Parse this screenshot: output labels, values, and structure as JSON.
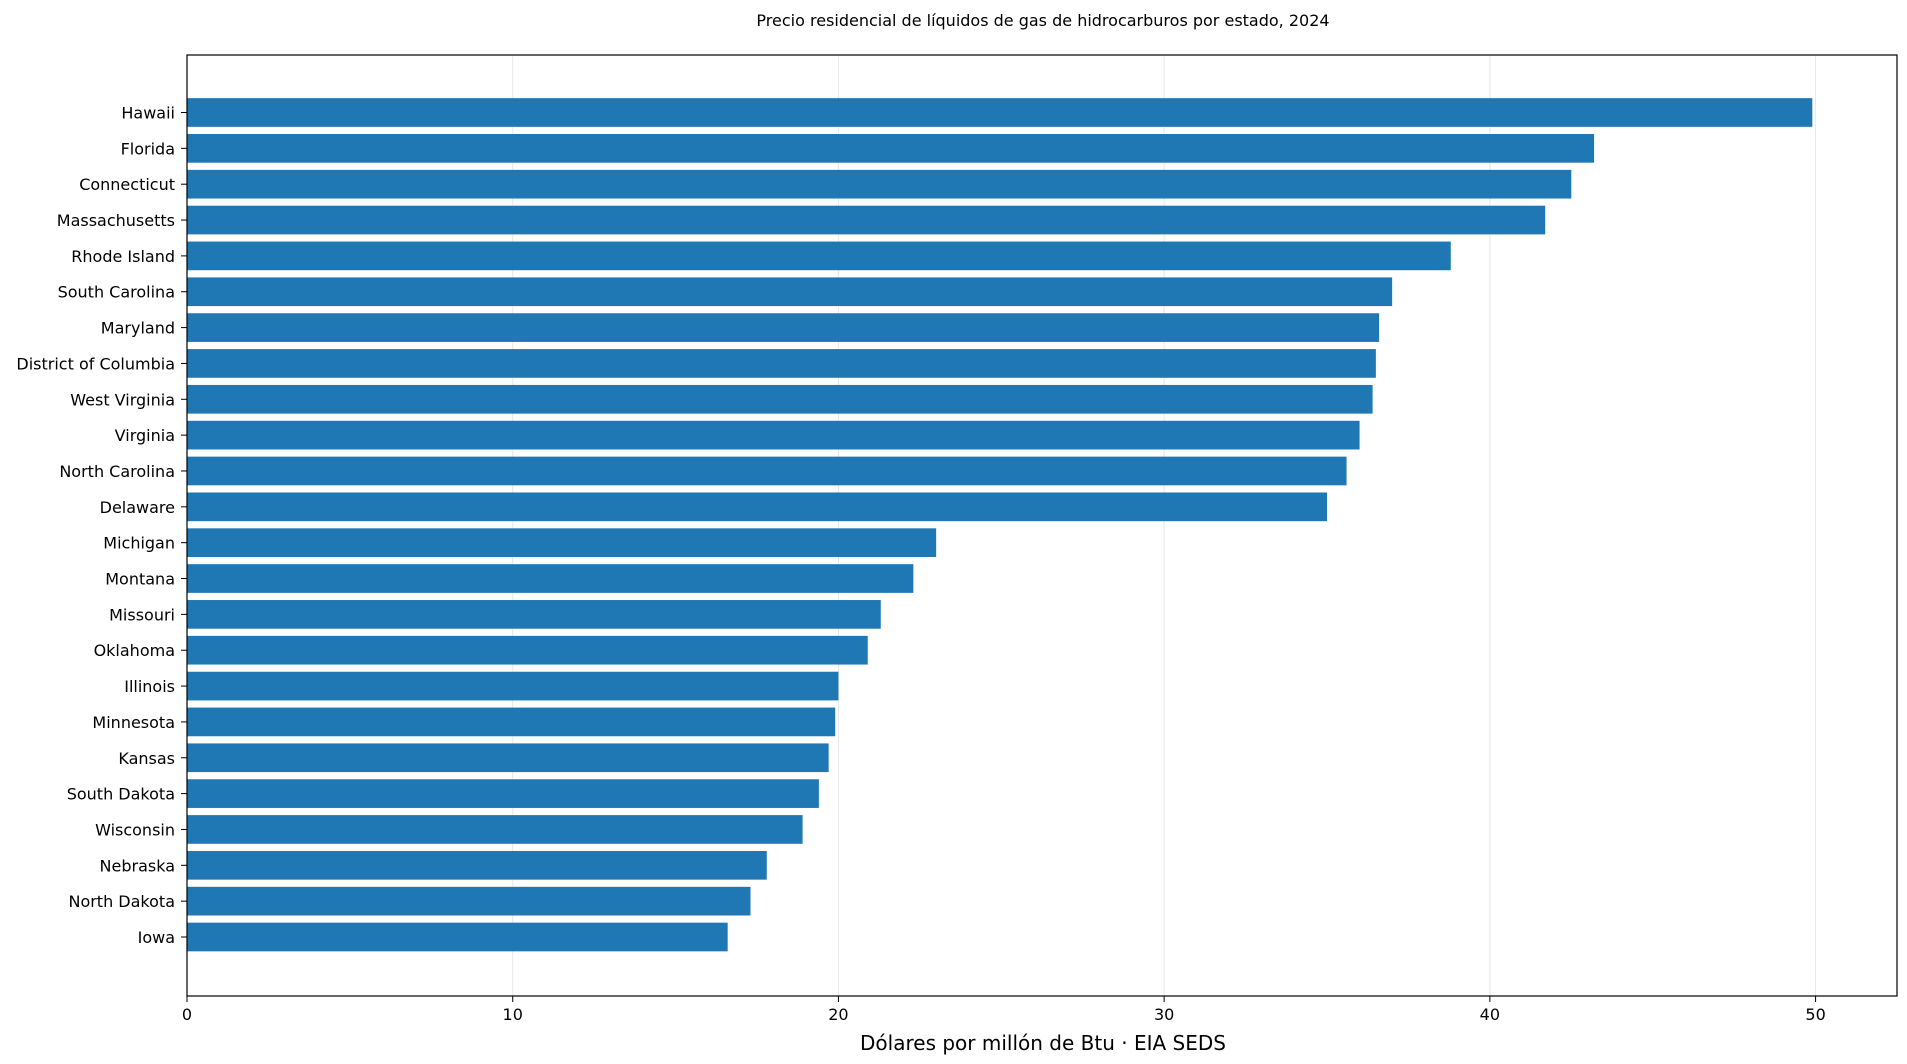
{
  "chart_data": {
    "type": "bar",
    "orientation": "horizontal",
    "title": "Precio residencial de líquidos de gas de hidrocarburos por estado, 2024",
    "xlabel": "Dólares por millón de Btu · EIA SEDS",
    "ylabel": "",
    "xlim": [
      0,
      52.5
    ],
    "xticks": [
      0,
      10,
      20,
      30,
      40,
      50
    ],
    "grid": "vertical",
    "legend": "none",
    "bar_color": "#1f77b4",
    "categories": [
      "Hawaii",
      "Florida",
      "Connecticut",
      "Massachusetts",
      "Rhode Island",
      "South Carolina",
      "Maryland",
      "District of Columbia",
      "West Virginia",
      "Virginia",
      "North Carolina",
      "Delaware",
      "Michigan",
      "Montana",
      "Missouri",
      "Oklahoma",
      "Illinois",
      "Minnesota",
      "Kansas",
      "South Dakota",
      "Wisconsin",
      "Nebraska",
      "North Dakota",
      "Iowa"
    ],
    "values": [
      49.9,
      43.2,
      42.5,
      41.7,
      38.8,
      37.0,
      36.6,
      36.5,
      36.4,
      36.0,
      35.6,
      35.0,
      23.0,
      22.3,
      21.3,
      20.9,
      20.0,
      19.9,
      19.7,
      19.4,
      18.9,
      17.8,
      17.3,
      16.6
    ]
  }
}
